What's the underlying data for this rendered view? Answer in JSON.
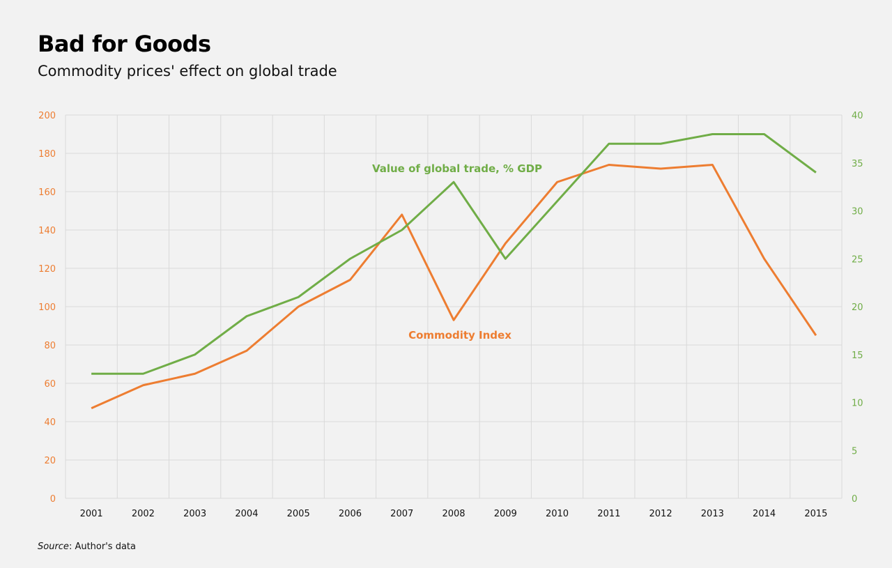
{
  "chart_data": {
    "type": "line",
    "title": "Bad for Goods",
    "subtitle": "Commodity prices' effect on global trade",
    "source_label": "Source",
    "source_text": ": Author's data",
    "categories": [
      "2001",
      "2002",
      "2003",
      "2004",
      "2005",
      "2006",
      "2007",
      "2008",
      "2009",
      "2010",
      "2011",
      "2012",
      "2013",
      "2014",
      "2015"
    ],
    "y_left": {
      "range": [
        0,
        200
      ],
      "ticks": [
        0,
        20,
        40,
        60,
        80,
        100,
        120,
        140,
        160,
        180,
        200
      ],
      "color": "#ed7d31"
    },
    "y_right": {
      "range": [
        0,
        40
      ],
      "ticks": [
        0,
        5,
        10,
        15,
        20,
        25,
        30,
        35,
        40
      ],
      "color": "#70ad47"
    },
    "grid": true,
    "series": [
      {
        "name": "Commodity Index",
        "axis": "left",
        "color": "#ed7d31",
        "values": [
          47,
          59,
          65,
          77,
          100,
          114,
          148,
          93,
          133,
          165,
          174,
          172,
          174,
          125,
          85
        ]
      },
      {
        "name": "Value of global trade, % GDP",
        "axis": "right",
        "color": "#70ad47",
        "values": [
          13,
          13,
          15,
          19,
          21,
          25,
          28,
          33,
          25,
          31,
          37,
          37,
          38,
          38,
          34
        ]
      }
    ]
  }
}
